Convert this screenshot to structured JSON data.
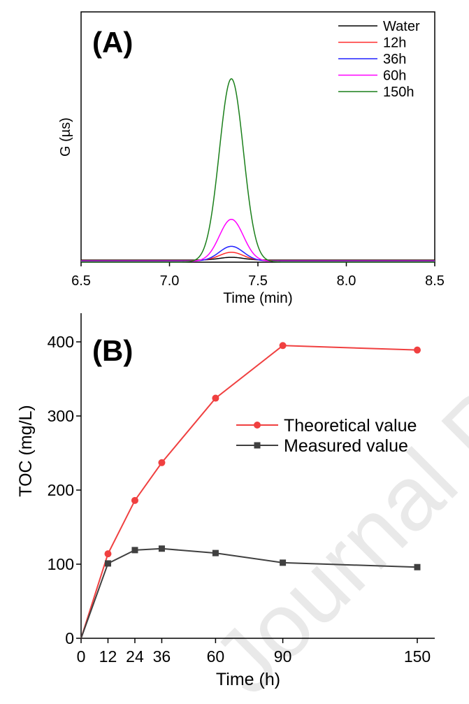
{
  "watermark": "Journal Pre",
  "chart_data": [
    {
      "type": "line",
      "panel_label": "(A)",
      "xlabel": "Time (min)",
      "ylabel": "G (µs)",
      "xlim": [
        6.5,
        8.5
      ],
      "ylim": [
        0,
        100
      ],
      "xticks": [
        "6.5",
        "7.0",
        "7.5",
        "8.0",
        "8.5"
      ],
      "legend_position": "top-right",
      "peak_center": 7.35,
      "series": [
        {
          "name": "Water",
          "color": "#000000",
          "peak_height": 1.5
        },
        {
          "name": "12h",
          "color": "#ff2a2a",
          "peak_height": 4.5
        },
        {
          "name": "36h",
          "color": "#2020ff",
          "peak_height": 8
        },
        {
          "name": "60h",
          "color": "#ff00ff",
          "peak_height": 23
        },
        {
          "name": "150h",
          "color": "#1a7f1a",
          "peak_height": 100
        }
      ]
    },
    {
      "type": "line",
      "panel_label": "(B)",
      "xlabel": "Time (h)",
      "ylabel": "TOC (mg/L)",
      "xlim": [
        0,
        160
      ],
      "ylim": [
        0,
        450
      ],
      "xticks": [
        "0",
        "12",
        "24",
        "36",
        "60",
        "90",
        "150"
      ],
      "yticks": [
        "0",
        "100",
        "200",
        "300",
        "400"
      ],
      "legend_position": "center-right",
      "x": [
        0,
        12,
        24,
        36,
        60,
        90,
        150
      ],
      "series": [
        {
          "name": "Theoretical value",
          "color": "#f04040",
          "marker": "circle",
          "values": [
            0,
            114,
            186,
            237,
            324,
            395,
            389
          ]
        },
        {
          "name": "Measured value",
          "color": "#404040",
          "marker": "square",
          "values": [
            0,
            101,
            119,
            121,
            115,
            102,
            96
          ]
        }
      ]
    }
  ]
}
